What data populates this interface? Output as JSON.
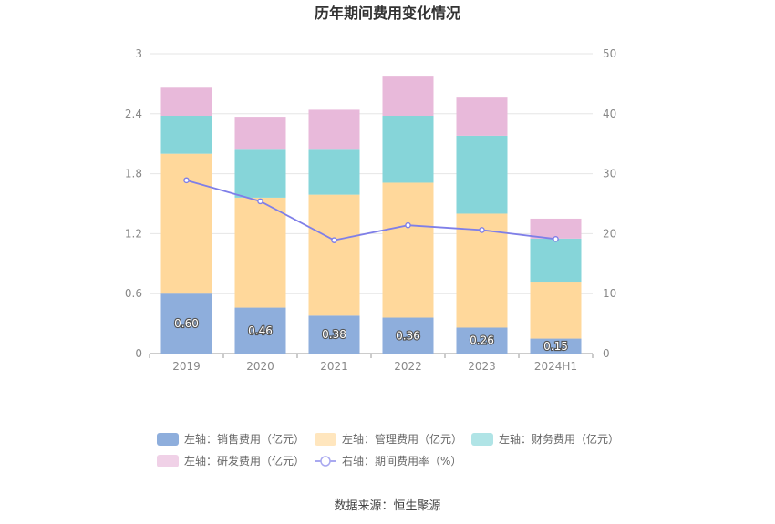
{
  "chart_data": {
    "type": "bar",
    "title": "历年期间费用变化情况",
    "categories": [
      "2019",
      "2020",
      "2021",
      "2022",
      "2023",
      "2024H1"
    ],
    "stacked": true,
    "left_axis": {
      "min": 0,
      "max": 3,
      "ticks": [
        "0",
        "0.6",
        "1.2",
        "1.8",
        "2.4",
        "3"
      ]
    },
    "right_axis": {
      "min": 0,
      "max": 50,
      "ticks": [
        "0",
        "10",
        "20",
        "30",
        "40",
        "50"
      ]
    },
    "series": [
      {
        "name": "左轴：销售费用（亿元）",
        "axis": "left",
        "color": "#8eaedc",
        "values": [
          0.6,
          0.46,
          0.38,
          0.36,
          0.26,
          0.15
        ],
        "labels": [
          "0.60",
          "0.46",
          "0.38",
          "0.36",
          "0.26",
          "0.15"
        ]
      },
      {
        "name": "左轴：管理费用（亿元）",
        "axis": "left",
        "color": "#ffd89b",
        "values": [
          1.4,
          1.1,
          1.21,
          1.35,
          1.14,
          0.57
        ]
      },
      {
        "name": "左轴：财务费用（亿元）",
        "axis": "left",
        "color": "#86d5d9",
        "values": [
          0.38,
          0.48,
          0.45,
          0.67,
          0.78,
          0.43
        ]
      },
      {
        "name": "左轴：研发费用（亿元）",
        "axis": "left",
        "color": "#e8b9da",
        "values": [
          0.28,
          0.33,
          0.4,
          0.4,
          0.39,
          0.2
        ]
      },
      {
        "name": "右轴：期间费用率（%）",
        "axis": "right",
        "type": "line",
        "color": "#7f7fe8",
        "values": [
          28.9,
          25.4,
          18.9,
          21.4,
          20.6,
          19.1
        ]
      }
    ],
    "grid": true,
    "legend_position": "bottom",
    "source": "数据来源：恒生聚源"
  }
}
